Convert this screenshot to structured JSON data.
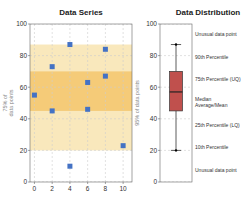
{
  "chart_data": [
    {
      "type": "scatter",
      "title": "Data Series",
      "x": [
        0,
        2,
        2,
        4,
        4,
        6,
        6,
        8,
        8,
        10
      ],
      "values": [
        55,
        45,
        73,
        10,
        87,
        46,
        63,
        84,
        67,
        23
      ],
      "color": "#4472C4",
      "marker": "square",
      "xlim": [
        -0.5,
        11
      ],
      "ylim": [
        0,
        100
      ],
      "xticks": [
        0,
        2,
        4,
        6,
        8,
        10
      ],
      "yticks": [
        0,
        20,
        40,
        60,
        80,
        100
      ],
      "grid": true,
      "bands": [
        {
          "ymin": 20,
          "ymax": 87,
          "color": "#F5D990"
        },
        {
          "ymin": 45,
          "ymax": 70,
          "color": "#F2B84B"
        }
      ],
      "annotations": [
        "75% of\ndata points",
        "95% of data points"
      ]
    },
    {
      "type": "box",
      "title": "Data Distribution",
      "q1": 45,
      "q3": 70,
      "median": 57,
      "p10": 20,
      "p90": 87,
      "color": "#C0504D",
      "ylim": [
        0,
        100
      ],
      "yticks": [
        0,
        20,
        40,
        60,
        80,
        100
      ],
      "grid": true,
      "annotations": [
        "Unusual data point",
        "90th Percentile",
        "75th Percentile (UQ)",
        "Median\nAverage/Mean",
        "25th Percentile (LQ)",
        "10th Percentile",
        "Unusual data point"
      ]
    }
  ]
}
